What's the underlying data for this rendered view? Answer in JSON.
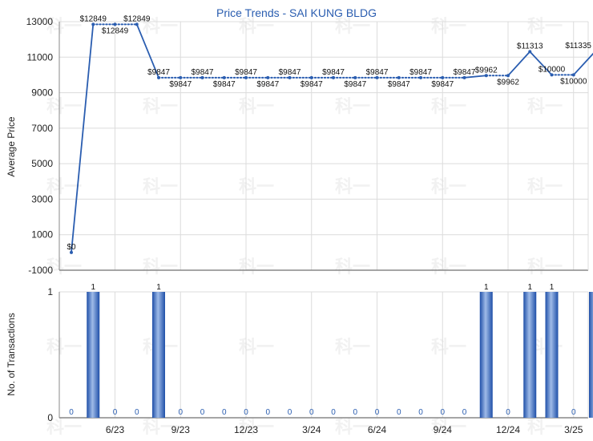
{
  "chart_data": [
    {
      "type": "line",
      "title": "Price Trends - SAI KUNG BLDG",
      "ylabel": "Average Price",
      "ylim": [
        -1000,
        13000
      ],
      "yticks": [
        "-1000",
        "1000",
        "3000",
        "5000",
        "7000",
        "9000",
        "11000",
        "13000"
      ],
      "x": [
        "2023-03",
        "2023-04",
        "2023-05",
        "2023-06",
        "2023-07",
        "2023-08",
        "2023-09",
        "2023-10",
        "2023-11",
        "2023-12",
        "2024-01",
        "2024-02",
        "2024-03",
        "2024-04",
        "2024-05",
        "2024-06",
        "2024-07",
        "2024-08",
        "2024-09",
        "2024-10",
        "2024-11",
        "2024-12",
        "2025-01",
        "2025-02",
        "2025-03"
      ],
      "values": [
        0,
        12849,
        12849,
        12849,
        9847,
        9847,
        9847,
        9847,
        9847,
        9847,
        9847,
        9847,
        9847,
        9847,
        9847,
        9847,
        9847,
        9847,
        9847,
        9962,
        9962,
        11313,
        10000,
        10000,
        11335
      ],
      "labels": [
        "$0",
        "$12849",
        "$12849",
        "$12849",
        "$9847",
        "$9847",
        "$9847",
        "$9847",
        "$9847",
        "$9847",
        "$9847",
        "$9847",
        "$9847",
        "$9847",
        "$9847",
        "$9847",
        "$9847",
        "$9847",
        "$9847",
        "$9962",
        "$9962",
        "$11313",
        "$10000",
        "$10000",
        "$11335"
      ],
      "transaction_flags": [
        0,
        1,
        0,
        0,
        1,
        0,
        0,
        0,
        0,
        0,
        0,
        0,
        0,
        0,
        0,
        0,
        0,
        0,
        0,
        1,
        0,
        1,
        1,
        0,
        1
      ],
      "grid": true,
      "line_color": "#2a5db0"
    },
    {
      "type": "bar",
      "ylabel": "No. of Transactions",
      "ylim": [
        0,
        1
      ],
      "yticks": [
        "0",
        "1"
      ],
      "x": [
        "2023-03",
        "2023-04",
        "2023-05",
        "2023-06",
        "2023-07",
        "2023-08",
        "2023-09",
        "2023-10",
        "2023-11",
        "2023-12",
        "2024-01",
        "2024-02",
        "2024-03",
        "2024-04",
        "2024-05",
        "2024-06",
        "2024-07",
        "2024-08",
        "2024-09",
        "2024-10",
        "2024-11",
        "2024-12",
        "2025-01",
        "2025-02",
        "2025-03"
      ],
      "values": [
        0,
        1,
        0,
        0,
        1,
        0,
        0,
        0,
        0,
        0,
        0,
        0,
        0,
        0,
        0,
        0,
        0,
        0,
        0,
        1,
        0,
        1,
        1,
        0,
        1
      ],
      "xticks": [
        {
          "index": 2,
          "label": "6/23"
        },
        {
          "index": 5,
          "label": "9/23"
        },
        {
          "index": 8,
          "label": "12/23"
        },
        {
          "index": 11,
          "label": "3/24"
        },
        {
          "index": 14,
          "label": "6/24"
        },
        {
          "index": 17,
          "label": "9/24"
        },
        {
          "index": 20,
          "label": "12/24"
        },
        {
          "index": 23,
          "label": "3/25"
        }
      ],
      "grid": true,
      "bar_color": "#2a5db0"
    }
  ],
  "watermark": "科一"
}
